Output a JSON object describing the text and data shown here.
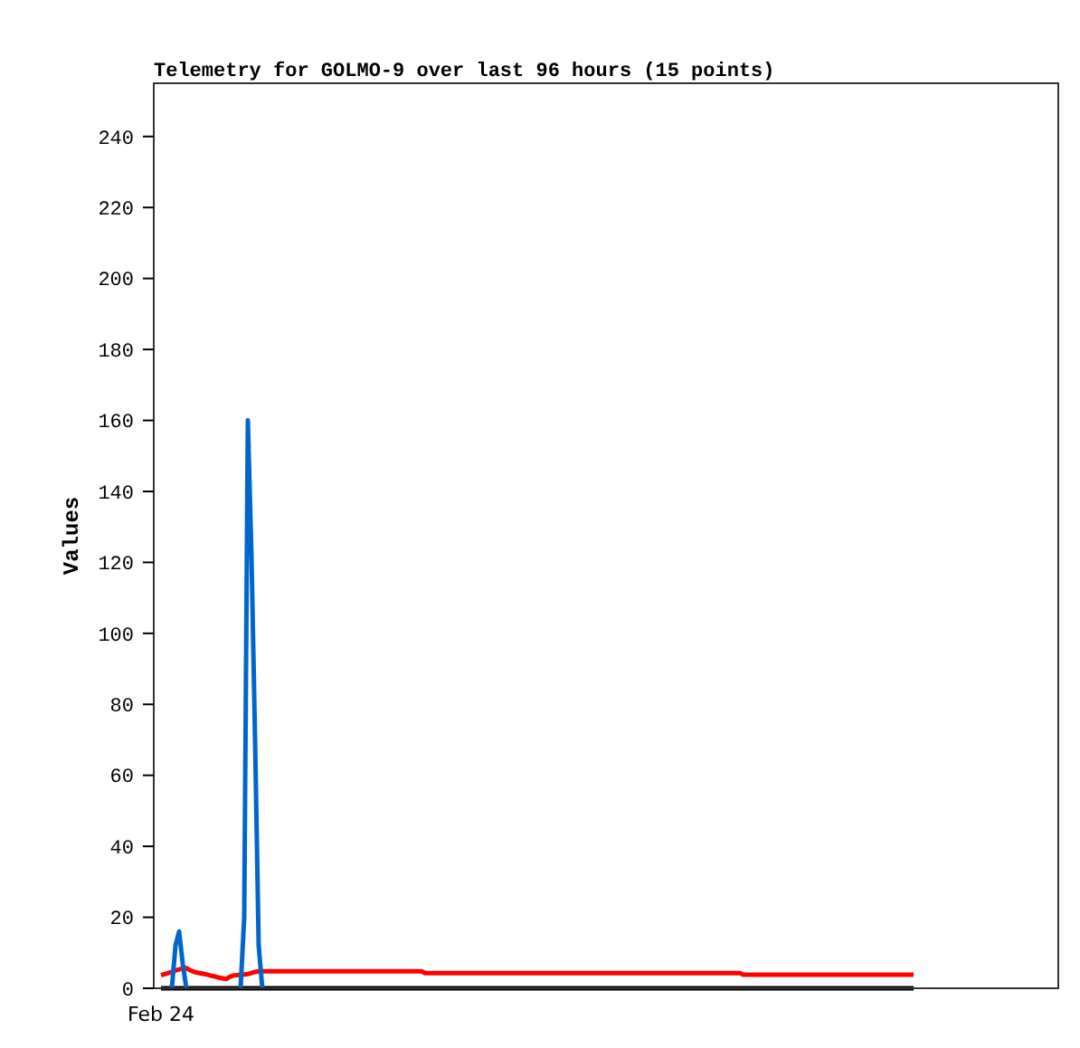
{
  "chart_data": {
    "type": "line",
    "title": "Telemetry for GOLMO-9 over last 96 hours (15 points)",
    "ylabel": "Values",
    "categories": [
      "Feb 24",
      null,
      null,
      null,
      null,
      null,
      null,
      null,
      null,
      null,
      null,
      null,
      null,
      null,
      null,
      null,
      null,
      null,
      null,
      null,
      null,
      null,
      null,
      null,
      null,
      null,
      null,
      null,
      null,
      null,
      null,
      null,
      null,
      null,
      null,
      null,
      null,
      null,
      null,
      null,
      null,
      null,
      null,
      null,
      null,
      null,
      null,
      null,
      null,
      null,
      null,
      null,
      null,
      null,
      null,
      null,
      null,
      null,
      null,
      null,
      null,
      null,
      null,
      null,
      null,
      null,
      null,
      null,
      null,
      null,
      null,
      null,
      null,
      null,
      null,
      null,
      null,
      null,
      null,
      null,
      null,
      null,
      null,
      null,
      null,
      null,
      null,
      null,
      null,
      null,
      null,
      null,
      null,
      null,
      null,
      null,
      null,
      null,
      null,
      null,
      null,
      null,
      null,
      null,
      null,
      null,
      null,
      null,
      null,
      null,
      null,
      null,
      null,
      null,
      null,
      null,
      null,
      null,
      null,
      null,
      null,
      null,
      null,
      null,
      null,
      null,
      null,
      null,
      null,
      null,
      null,
      null,
      null,
      null,
      null,
      null,
      null,
      null,
      null,
      null,
      null,
      null,
      null,
      null,
      null,
      null,
      null,
      null,
      null,
      null,
      null,
      null,
      null,
      null,
      null,
      null,
      null,
      null,
      null,
      null,
      null,
      null,
      null,
      null,
      null,
      null,
      null,
      null,
      null,
      null,
      null,
      null,
      null,
      null,
      null,
      null,
      null,
      null,
      null,
      null,
      null,
      null,
      null,
      null,
      null,
      null,
      null,
      null,
      null,
      null,
      null,
      null,
      null,
      null,
      null,
      null,
      null,
      null,
      null,
      null,
      null,
      null,
      null,
      null,
      null,
      null,
      null,
      null,
      null
    ],
    "ylim": [
      0,
      255
    ],
    "yticks": [
      0,
      20,
      40,
      60,
      80,
      100,
      120,
      140,
      160,
      180,
      200,
      220,
      240
    ],
    "grid": false,
    "marker": "none",
    "line_style": "solid",
    "series": [
      {
        "color": "#000000",
        "values": [
          0,
          0,
          0,
          0,
          0,
          0,
          0,
          0,
          0,
          0,
          0,
          0,
          0,
          0,
          0,
          0,
          0,
          0,
          0,
          0,
          0,
          0,
          0,
          0,
          0,
          0,
          0,
          0,
          0,
          0,
          0,
          0,
          0,
          0,
          0,
          0,
          0,
          0,
          0,
          0,
          0,
          0,
          0,
          0,
          0,
          0,
          0,
          0,
          0,
          0,
          0,
          0,
          0,
          0,
          0,
          0,
          0,
          0,
          0,
          0,
          0,
          0,
          0,
          0,
          0,
          0,
          0,
          0,
          0,
          0,
          0,
          0,
          0,
          0,
          0,
          0,
          0,
          0,
          0,
          0,
          0,
          0,
          0,
          0,
          0,
          0,
          0,
          0,
          0,
          0,
          0,
          0,
          0,
          0,
          0,
          0,
          0,
          0,
          0,
          0,
          0,
          0,
          0,
          0,
          0,
          0,
          0,
          0,
          0,
          0,
          0,
          0,
          0,
          0,
          0,
          0,
          0,
          0,
          0,
          0,
          0,
          0,
          0,
          0,
          0,
          0,
          0,
          0,
          0,
          0,
          0,
          0,
          0,
          0,
          0,
          0,
          0,
          0,
          0,
          0,
          0,
          0,
          0,
          0,
          0,
          0,
          0,
          0,
          0,
          0,
          0,
          0,
          0,
          0,
          0,
          0,
          0,
          0,
          0,
          0,
          0,
          0,
          0,
          0,
          0,
          0,
          0,
          0,
          0,
          0,
          0,
          0,
          0,
          0,
          0,
          0,
          0,
          0,
          0,
          0,
          0,
          0,
          0,
          0,
          0,
          0,
          0,
          0,
          0,
          0,
          0,
          0,
          0,
          0,
          0,
          0,
          0,
          0,
          0,
          0,
          0,
          0,
          0,
          0,
          0,
          0,
          0,
          0,
          0
        ]
      },
      {
        "color": "#ff0000",
        "values": [
          3.7,
          4.0,
          4.3,
          4.6,
          5.0,
          5.3,
          5.6,
          5.7,
          5.1,
          4.7,
          4.4,
          4.2,
          4.0,
          3.8,
          3.5,
          3.3,
          3.0,
          2.8,
          2.6,
          3.2,
          3.6,
          3.7,
          3.8,
          3.9,
          4.0,
          4.3,
          4.6,
          4.8,
          4.8,
          4.8,
          4.8,
          4.8,
          4.8,
          4.8,
          4.8,
          4.8,
          4.8,
          4.8,
          4.8,
          4.8,
          4.8,
          4.8,
          4.8,
          4.8,
          4.8,
          4.8,
          4.8,
          4.8,
          4.8,
          4.8,
          4.8,
          4.8,
          4.8,
          4.8,
          4.8,
          4.8,
          4.8,
          4.8,
          4.8,
          4.8,
          4.8,
          4.8,
          4.8,
          4.8,
          4.8,
          4.8,
          4.8,
          4.8,
          4.8,
          4.8,
          4.8,
          4.8,
          4.8,
          4.3,
          4.3,
          4.3,
          4.3,
          4.3,
          4.3,
          4.3,
          4.3,
          4.3,
          4.3,
          4.3,
          4.3,
          4.3,
          4.3,
          4.3,
          4.3,
          4.3,
          4.3,
          4.3,
          4.3,
          4.3,
          4.3,
          4.3,
          4.3,
          4.3,
          4.3,
          4.3,
          4.3,
          4.3,
          4.3,
          4.3,
          4.3,
          4.3,
          4.3,
          4.3,
          4.3,
          4.3,
          4.3,
          4.3,
          4.3,
          4.3,
          4.3,
          4.3,
          4.3,
          4.3,
          4.3,
          4.3,
          4.3,
          4.3,
          4.3,
          4.3,
          4.3,
          4.3,
          4.3,
          4.3,
          4.3,
          4.3,
          4.3,
          4.3,
          4.3,
          4.3,
          4.3,
          4.3,
          4.3,
          4.3,
          4.3,
          4.3,
          4.3,
          4.3,
          4.3,
          4.3,
          4.3,
          4.3,
          4.3,
          4.3,
          4.3,
          4.3,
          4.3,
          4.3,
          4.3,
          4.3,
          4.3,
          4.3,
          4.3,
          4.3,
          4.3,
          4.3,
          4.3,
          3.8,
          3.8,
          3.8,
          3.8,
          3.8,
          3.8,
          3.8,
          3.8,
          3.8,
          3.8,
          3.8,
          3.8,
          3.8,
          3.8,
          3.8,
          3.8,
          3.8,
          3.8,
          3.8,
          3.8,
          3.8,
          3.8,
          3.8,
          3.8,
          3.8,
          3.8,
          3.8,
          3.8,
          3.8,
          3.8,
          3.8,
          3.8,
          3.8,
          3.8,
          3.8,
          3.8,
          3.8,
          3.8,
          3.8,
          3.8,
          3.8,
          3.8,
          3.8,
          3.8,
          3.8,
          3.8,
          3.8,
          3.8
        ]
      },
      {
        "color": "#0066cc",
        "values": [
          null,
          null,
          null,
          0,
          12,
          16,
          7,
          0,
          null,
          null,
          null,
          null,
          null,
          null,
          null,
          null,
          null,
          null,
          null,
          null,
          null,
          null,
          0,
          20,
          160,
          122,
          70,
          12,
          0,
          null,
          null,
          null,
          null,
          null,
          null,
          null,
          null,
          null,
          null,
          null,
          null,
          null,
          null,
          null,
          null,
          null,
          null,
          null,
          null,
          null,
          null,
          null,
          null,
          null,
          null,
          null,
          null,
          null,
          null,
          null,
          null,
          null,
          null,
          null,
          null,
          null,
          null,
          null,
          null,
          null,
          null,
          null,
          null,
          null,
          null,
          null,
          null,
          null,
          null,
          null,
          null,
          null,
          null,
          null,
          null,
          null,
          null,
          null,
          null,
          null,
          null,
          null,
          null,
          null,
          null,
          null,
          null,
          null,
          null,
          null,
          null,
          null,
          null,
          null,
          null,
          null,
          null,
          null,
          null,
          null,
          null,
          null,
          null,
          null,
          null,
          null,
          null,
          null,
          null,
          null,
          null,
          null,
          null,
          null,
          null,
          null,
          null,
          null,
          null,
          null,
          null,
          null,
          null,
          null,
          null,
          null,
          null,
          null,
          null,
          null,
          null,
          null,
          null,
          null,
          null,
          null,
          null,
          null,
          null,
          null,
          null,
          null,
          null,
          null,
          null,
          null,
          null,
          null,
          null,
          null,
          null,
          null,
          null,
          null,
          null,
          null,
          null,
          null,
          null,
          null,
          null,
          null,
          null,
          null,
          null,
          null,
          null,
          null,
          null,
          null,
          null,
          null,
          null,
          null,
          null,
          null,
          null,
          null,
          null,
          null,
          null,
          null,
          null,
          null,
          null,
          null,
          null,
          null,
          null,
          null,
          null,
          null,
          null,
          null,
          null,
          null,
          null,
          null,
          null
        ]
      }
    ]
  }
}
